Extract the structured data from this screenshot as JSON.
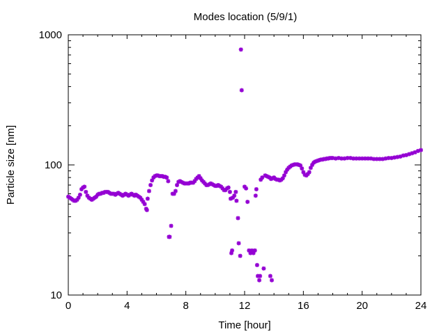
{
  "chart_data": {
    "type": "scatter",
    "title": "Modes location (5/9/1)",
    "xlabel": "Time [hour]",
    "ylabel": "Particle size [nm]",
    "xlim": [
      0,
      24
    ],
    "ylim": [
      10,
      1000
    ],
    "y_scale": "log",
    "grid": false,
    "legend": "none",
    "marker_color": "#9400d3",
    "x_ticks": [
      0,
      4,
      8,
      12,
      16,
      20,
      24
    ],
    "x_tick_labels": [
      "0",
      "4",
      "8",
      "12",
      "16",
      "20",
      "24"
    ],
    "y_ticks": [
      10,
      100,
      1000
    ],
    "y_tick_labels": [
      "10",
      "100",
      "1000"
    ],
    "series": [
      {
        "marker": "star",
        "points": [
          [
            0.0,
            57
          ],
          [
            0.1,
            56
          ],
          [
            0.2,
            55
          ],
          [
            0.3,
            54
          ],
          [
            0.4,
            53
          ],
          [
            0.5,
            53
          ],
          [
            0.6,
            54
          ],
          [
            0.7,
            56
          ],
          [
            0.8,
            59
          ],
          [
            0.9,
            65
          ],
          [
            1.0,
            67
          ],
          [
            1.1,
            68
          ],
          [
            1.2,
            62
          ],
          [
            1.3,
            58
          ],
          [
            1.4,
            56
          ],
          [
            1.5,
            55
          ],
          [
            1.6,
            54
          ],
          [
            1.7,
            55
          ],
          [
            1.8,
            56
          ],
          [
            1.9,
            57
          ],
          [
            2.0,
            59
          ],
          [
            2.1,
            60
          ],
          [
            2.2,
            60
          ],
          [
            2.3,
            61
          ],
          [
            2.4,
            61
          ],
          [
            2.5,
            62
          ],
          [
            2.6,
            62
          ],
          [
            2.7,
            62
          ],
          [
            2.8,
            61
          ],
          [
            2.9,
            60
          ],
          [
            3.0,
            60
          ],
          [
            3.1,
            60
          ],
          [
            3.2,
            59
          ],
          [
            3.3,
            60
          ],
          [
            3.4,
            61
          ],
          [
            3.5,
            60
          ],
          [
            3.6,
            59
          ],
          [
            3.7,
            58
          ],
          [
            3.8,
            59
          ],
          [
            3.9,
            60
          ],
          [
            4.0,
            59
          ],
          [
            4.1,
            58
          ],
          [
            4.2,
            59
          ],
          [
            4.3,
            60
          ],
          [
            4.4,
            59
          ],
          [
            4.5,
            58
          ],
          [
            4.6,
            59
          ],
          [
            4.7,
            58
          ],
          [
            4.8,
            57
          ],
          [
            4.9,
            56
          ],
          [
            5.0,
            54
          ],
          [
            5.1,
            52
          ],
          [
            5.2,
            50
          ],
          [
            5.3,
            46
          ],
          [
            5.35,
            45
          ],
          [
            5.4,
            55
          ],
          [
            5.5,
            63
          ],
          [
            5.6,
            70
          ],
          [
            5.7,
            76
          ],
          [
            5.8,
            80
          ],
          [
            5.9,
            82
          ],
          [
            6.0,
            83
          ],
          [
            6.1,
            83
          ],
          [
            6.2,
            82
          ],
          [
            6.3,
            82
          ],
          [
            6.4,
            82
          ],
          [
            6.5,
            81
          ],
          [
            6.6,
            81
          ],
          [
            6.7,
            80
          ],
          [
            6.8,
            75
          ],
          [
            6.85,
            28
          ],
          [
            6.9,
            28
          ],
          [
            7.0,
            34
          ],
          [
            7.1,
            60
          ],
          [
            7.2,
            60
          ],
          [
            7.3,
            63
          ],
          [
            7.4,
            70
          ],
          [
            7.5,
            74
          ],
          [
            7.6,
            75
          ],
          [
            7.7,
            74
          ],
          [
            7.8,
            73
          ],
          [
            7.9,
            72
          ],
          [
            8.0,
            72
          ],
          [
            8.1,
            72
          ],
          [
            8.2,
            72
          ],
          [
            8.3,
            73
          ],
          [
            8.4,
            73
          ],
          [
            8.5,
            73
          ],
          [
            8.6,
            75
          ],
          [
            8.7,
            78
          ],
          [
            8.8,
            80
          ],
          [
            8.9,
            82
          ],
          [
            9.0,
            79
          ],
          [
            9.1,
            76
          ],
          [
            9.2,
            74
          ],
          [
            9.3,
            72
          ],
          [
            9.4,
            70
          ],
          [
            9.5,
            70
          ],
          [
            9.6,
            71
          ],
          [
            9.7,
            72
          ],
          [
            9.8,
            71
          ],
          [
            9.9,
            70
          ],
          [
            10.0,
            69
          ],
          [
            10.1,
            69
          ],
          [
            10.2,
            70
          ],
          [
            10.3,
            69
          ],
          [
            10.4,
            68
          ],
          [
            10.5,
            66
          ],
          [
            10.6,
            64
          ],
          [
            10.7,
            64
          ],
          [
            10.8,
            66
          ],
          [
            10.9,
            67
          ],
          [
            11.0,
            62
          ],
          [
            11.05,
            55
          ],
          [
            11.1,
            21
          ],
          [
            11.15,
            22
          ],
          [
            11.2,
            56
          ],
          [
            11.3,
            58
          ],
          [
            11.4,
            62
          ],
          [
            11.45,
            53
          ],
          [
            11.55,
            39
          ],
          [
            11.6,
            25
          ],
          [
            11.7,
            20
          ],
          [
            11.75,
            770
          ],
          [
            11.8,
            375
          ],
          [
            12.0,
            68
          ],
          [
            12.1,
            66
          ],
          [
            12.2,
            52
          ],
          [
            12.3,
            22
          ],
          [
            12.4,
            21
          ],
          [
            12.5,
            22
          ],
          [
            12.6,
            21
          ],
          [
            12.7,
            22
          ],
          [
            12.75,
            58
          ],
          [
            12.8,
            65
          ],
          [
            12.85,
            17
          ],
          [
            12.9,
            14
          ],
          [
            13.0,
            13
          ],
          [
            13.05,
            14
          ],
          [
            13.1,
            77
          ],
          [
            13.2,
            80
          ],
          [
            13.3,
            16
          ],
          [
            13.4,
            83
          ],
          [
            13.5,
            82
          ],
          [
            13.6,
            81
          ],
          [
            13.7,
            80
          ],
          [
            13.75,
            14
          ],
          [
            13.8,
            78
          ],
          [
            13.85,
            13
          ],
          [
            13.9,
            79
          ],
          [
            14.0,
            80
          ],
          [
            14.1,
            78
          ],
          [
            14.2,
            77
          ],
          [
            14.3,
            77
          ],
          [
            14.4,
            76
          ],
          [
            14.5,
            77
          ],
          [
            14.6,
            79
          ],
          [
            14.7,
            83
          ],
          [
            14.8,
            88
          ],
          [
            14.9,
            92
          ],
          [
            15.0,
            95
          ],
          [
            15.1,
            97
          ],
          [
            15.2,
            99
          ],
          [
            15.3,
            100
          ],
          [
            15.4,
            101
          ],
          [
            15.5,
            101
          ],
          [
            15.6,
            101
          ],
          [
            15.7,
            100
          ],
          [
            15.8,
            99
          ],
          [
            15.9,
            94
          ],
          [
            16.0,
            88
          ],
          [
            16.1,
            84
          ],
          [
            16.2,
            83
          ],
          [
            16.3,
            85
          ],
          [
            16.4,
            88
          ],
          [
            16.5,
            95
          ],
          [
            16.6,
            100
          ],
          [
            16.7,
            104
          ],
          [
            16.8,
            106
          ],
          [
            16.9,
            107
          ],
          [
            17.0,
            108
          ],
          [
            17.1,
            109
          ],
          [
            17.2,
            110
          ],
          [
            17.3,
            110
          ],
          [
            17.4,
            111
          ],
          [
            17.5,
            111
          ],
          [
            17.6,
            112
          ],
          [
            17.7,
            112
          ],
          [
            17.8,
            113
          ],
          [
            17.9,
            113
          ],
          [
            18.0,
            113
          ],
          [
            18.2,
            112
          ],
          [
            18.4,
            113
          ],
          [
            18.6,
            112
          ],
          [
            18.8,
            112
          ],
          [
            19.0,
            113
          ],
          [
            19.2,
            113
          ],
          [
            19.4,
            112
          ],
          [
            19.6,
            112
          ],
          [
            19.8,
            112
          ],
          [
            20.0,
            112
          ],
          [
            20.2,
            112
          ],
          [
            20.4,
            112
          ],
          [
            20.6,
            112
          ],
          [
            20.8,
            111
          ],
          [
            21.0,
            111
          ],
          [
            21.2,
            111
          ],
          [
            21.4,
            111
          ],
          [
            21.6,
            112
          ],
          [
            21.8,
            113
          ],
          [
            22.0,
            113
          ],
          [
            22.2,
            114
          ],
          [
            22.4,
            115
          ],
          [
            22.6,
            116
          ],
          [
            22.8,
            118
          ],
          [
            23.0,
            119
          ],
          [
            23.2,
            121
          ],
          [
            23.4,
            123
          ],
          [
            23.6,
            125
          ],
          [
            23.8,
            128
          ],
          [
            24.0,
            130
          ]
        ]
      }
    ]
  }
}
